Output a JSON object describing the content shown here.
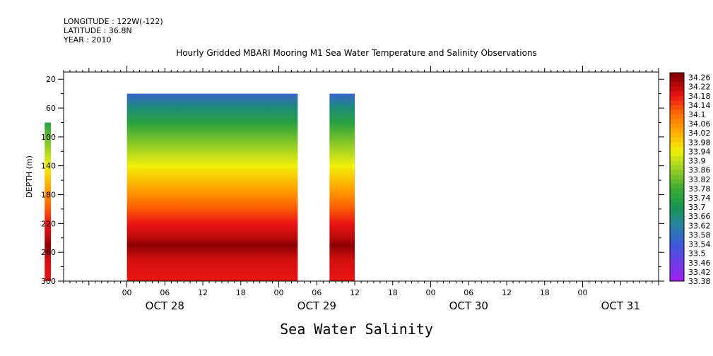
{
  "header": {
    "longitude": "LONGITUDE : 122W(-122)",
    "latitude": "LATITUDE : 36.8N",
    "year": "YEAR : 2010"
  },
  "chart_data": {
    "type": "heatmap",
    "title": "Hourly Gridded MBARI Mooring M1 Sea Water Temperature and Salinity Observations",
    "xlabel": "Sea Water Salinity",
    "ylabel": "DEPTH (m)",
    "x_axis": {
      "range_hours": [
        -10,
        84
      ],
      "range_note": "hours relative to OCT 28 00:00",
      "hour_tick_labels": [
        "00",
        "06",
        "12",
        "18",
        "00",
        "06",
        "12",
        "18",
        "00",
        "06",
        "12",
        "18",
        "00"
      ],
      "day_labels": [
        "OCT 28",
        "OCT 29",
        "OCT 30",
        "OCT 31"
      ]
    },
    "y_axis": {
      "range": [
        300,
        10
      ],
      "ticks": [
        20,
        60,
        100,
        140,
        180,
        220,
        260,
        300
      ],
      "inverted": true
    },
    "colorbar": {
      "min": 33.38,
      "max": 34.28,
      "labels": [
        "34.26",
        "34.22",
        "34.18",
        "34.14",
        "34.1",
        "34.06",
        "34.02",
        "33.98",
        "33.94",
        "33.9",
        "33.86",
        "33.82",
        "33.78",
        "33.74",
        "33.7",
        "33.66",
        "33.62",
        "33.58",
        "33.54",
        "33.5",
        "33.46",
        "33.42",
        "33.38"
      ]
    },
    "data_blocks": [
      {
        "x_start": -13,
        "x_end": -12,
        "depth_top": 80,
        "depth_bottom": 300
      },
      {
        "x_start": 0,
        "x_end": 27,
        "depth_top": 40,
        "depth_bottom": 300
      },
      {
        "x_start": 32,
        "x_end": 36,
        "depth_top": 40,
        "depth_bottom": 300
      }
    ],
    "salinity_profile": {
      "depth": [
        40,
        60,
        80,
        100,
        120,
        140,
        160,
        180,
        200,
        220,
        240,
        250,
        270,
        300
      ],
      "salinity": [
        33.56,
        33.66,
        33.74,
        33.82,
        33.88,
        33.94,
        34.0,
        34.06,
        34.12,
        34.18,
        34.22,
        34.26,
        34.2,
        34.18
      ]
    }
  }
}
